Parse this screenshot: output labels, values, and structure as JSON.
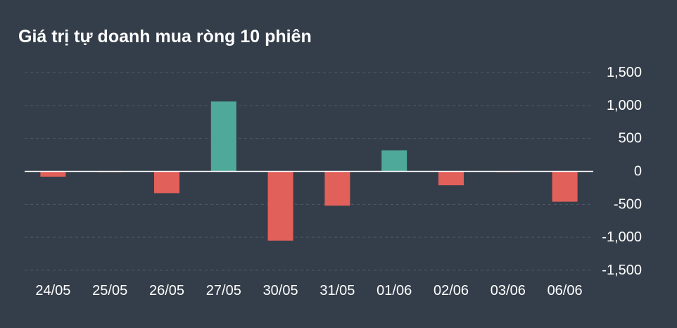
{
  "chart_data": {
    "type": "bar",
    "title": "Giá trị tự doanh mua ròng 10 phiên",
    "categories": [
      "24/05",
      "25/05",
      "26/05",
      "27/05",
      "30/05",
      "31/05",
      "01/06",
      "02/06",
      "03/06",
      "06/06"
    ],
    "values": [
      -80,
      -10,
      -330,
      1060,
      -1050,
      -520,
      320,
      -210,
      -10,
      -460
    ],
    "ylim": [
      -1500,
      1500
    ],
    "yticks": [
      1500,
      1000,
      500,
      0,
      -500,
      -1000,
      -1500
    ],
    "ytick_labels": [
      "1,500",
      "1,000",
      "500",
      "0",
      "-500",
      "-1,000",
      "-1,500"
    ],
    "grid": true,
    "y_axis_side": "right",
    "legend": "none",
    "colors": {
      "positive": "#4fa99a",
      "negative": "#e2605a",
      "background": "#343e4a",
      "grid": "#4f5966",
      "zero_line": "#ffffff",
      "text": "#ffffff"
    }
  }
}
